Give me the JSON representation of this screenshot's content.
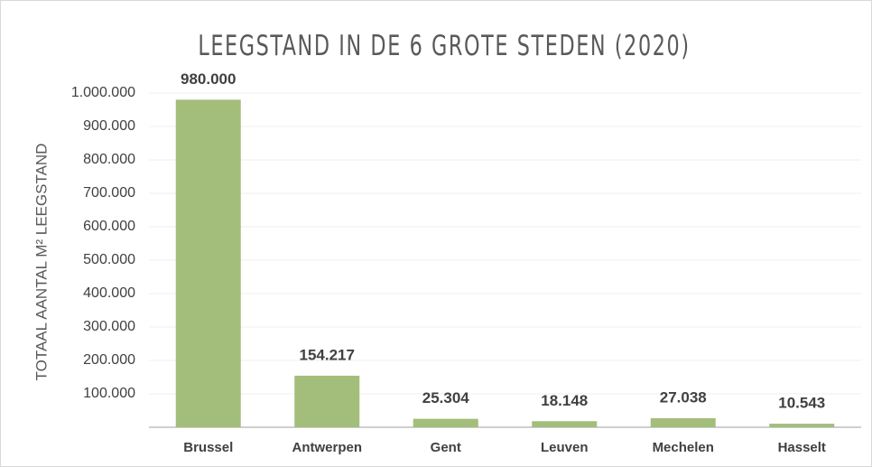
{
  "chart_data": {
    "type": "bar",
    "title": "LEEGSTAND IN DE 6 GROTE STEDEN (2020)",
    "y_label": "TOTAAL AANTAL M² LEEGSTAND",
    "categories": [
      "Brussel",
      "Antwerpen",
      "Gent",
      "Leuven",
      "Mechelen",
      "Hasselt"
    ],
    "values": [
      980000,
      154217,
      25304,
      18148,
      27038,
      10543
    ],
    "value_labels": [
      "980.000",
      "154.217",
      "25.304",
      "18.148",
      "27.038",
      "10.543"
    ],
    "color": "#a3be7b",
    "ylim": [
      0,
      1000000
    ],
    "yticks": [
      {
        "value": 100000,
        "label": "100.000"
      },
      {
        "value": 200000,
        "label": "200.000"
      },
      {
        "value": 300000,
        "label": "300.000"
      },
      {
        "value": 400000,
        "label": "400.000"
      },
      {
        "value": 500000,
        "label": "500.000"
      },
      {
        "value": 600000,
        "label": "600.000"
      },
      {
        "value": 700000,
        "label": "700.000"
      },
      {
        "value": 800000,
        "label": "800.000"
      },
      {
        "value": 900000,
        "label": "900.000"
      },
      {
        "value": 1000000,
        "label": "1.000.000"
      }
    ],
    "grid": true
  }
}
